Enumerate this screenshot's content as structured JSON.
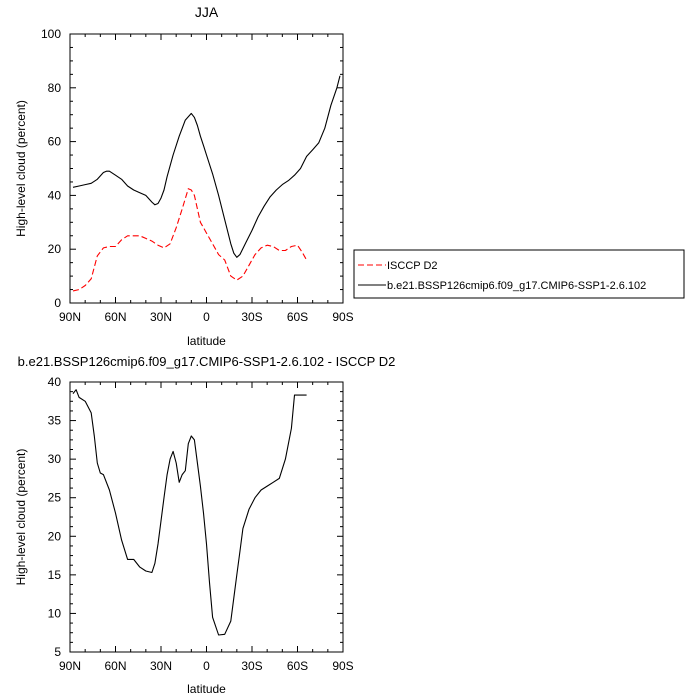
{
  "chart_data": [
    {
      "type": "line",
      "title": "JJA",
      "xlabel": "latitude",
      "ylabel": "High-level cloud (percent)",
      "x_ticks": [
        {
          "value": 90,
          "label": "90N"
        },
        {
          "value": 60,
          "label": "60N"
        },
        {
          "value": 30,
          "label": "30N"
        },
        {
          "value": 0,
          "label": "0"
        },
        {
          "value": -30,
          "label": "30S"
        },
        {
          "value": -60,
          "label": "60S"
        },
        {
          "value": -90,
          "label": "90S"
        }
      ],
      "xlim": [
        90,
        -90
      ],
      "ylim": [
        0,
        100
      ],
      "y_ticks": [
        0,
        20,
        40,
        60,
        80,
        100
      ],
      "grid": false,
      "legend_position": "right",
      "series": [
        {
          "name": "ISCCP D2",
          "color": "#ff0000",
          "dash": "dashed",
          "x": [
            88,
            84,
            80,
            76,
            72,
            68,
            64,
            60,
            56,
            52,
            48,
            44,
            40,
            36,
            32,
            28,
            24,
            20,
            16,
            12,
            10,
            8,
            6,
            4,
            2,
            0,
            -4,
            -8,
            -12,
            -16,
            -20,
            -24,
            -28,
            -32,
            -36,
            -40,
            -44,
            -48,
            -52,
            -56,
            -60,
            -63,
            -66
          ],
          "y": [
            4.5,
            5.0,
            6.5,
            9.0,
            17.5,
            20.5,
            21.0,
            21.0,
            23.5,
            25.0,
            25.0,
            25.0,
            24.0,
            23.0,
            21.5,
            20.5,
            22.0,
            28.0,
            35.0,
            42.5,
            42.0,
            40.0,
            35.0,
            30.0,
            28.0,
            26.0,
            22.0,
            18.0,
            16.0,
            10.0,
            8.5,
            10.0,
            14.0,
            18.0,
            20.5,
            21.5,
            21.0,
            19.5,
            19.5,
            21.0,
            21.5,
            19.0,
            16.0
          ]
        },
        {
          "name": "b.e21.BSSP126cmip6.f09_g17.CMIP6-SSP1-2.6.102",
          "color": "#000000",
          "dash": "solid",
          "x": [
            88,
            84,
            80,
            76,
            72,
            68,
            66,
            64,
            60,
            56,
            52,
            48,
            44,
            40,
            36,
            34,
            32,
            30,
            28,
            26,
            22,
            18,
            14,
            10,
            8,
            6,
            4,
            2,
            0,
            -4,
            -8,
            -12,
            -16,
            -18,
            -20,
            -22,
            -26,
            -30,
            -34,
            -38,
            -42,
            -46,
            -50,
            -54,
            -58,
            -62,
            -66,
            -70,
            -74,
            -78,
            -82,
            -86,
            -88
          ],
          "y": [
            43.0,
            43.5,
            44.0,
            44.5,
            46.0,
            48.5,
            49.0,
            49.0,
            47.5,
            46.0,
            43.5,
            42.0,
            41.0,
            40.0,
            37.5,
            36.5,
            37.0,
            39.0,
            42.0,
            47.0,
            55.0,
            62.0,
            68.0,
            70.5,
            69.0,
            66.0,
            62.0,
            58.5,
            55.0,
            48.0,
            40.0,
            31.0,
            22.0,
            18.5,
            17.0,
            18.0,
            22.5,
            27.0,
            32.0,
            36.0,
            39.5,
            42.0,
            44.0,
            45.5,
            47.5,
            50.0,
            54.5,
            57.0,
            59.5,
            65.0,
            73.5,
            80.0,
            84.5
          ]
        }
      ]
    },
    {
      "type": "line",
      "title": "b.e21.BSSP126cmip6.f09_g17.CMIP6-SSP1-2.6.102 - ISCCP D2",
      "xlabel": "latitude",
      "ylabel": "High-level cloud (percent)",
      "x_ticks": [
        {
          "value": 90,
          "label": "90N"
        },
        {
          "value": 60,
          "label": "60N"
        },
        {
          "value": 30,
          "label": "30N"
        },
        {
          "value": 0,
          "label": "0"
        },
        {
          "value": -30,
          "label": "30S"
        },
        {
          "value": -60,
          "label": "60S"
        },
        {
          "value": -90,
          "label": "90S"
        }
      ],
      "xlim": [
        90,
        -90
      ],
      "ylim": [
        5,
        40
      ],
      "y_ticks": [
        5,
        10,
        15,
        20,
        25,
        30,
        35,
        40
      ],
      "grid": false,
      "series": [
        {
          "color": "#000000",
          "dash": "solid",
          "x": [
            88,
            86,
            84,
            80,
            76,
            74,
            72,
            70,
            68,
            64,
            60,
            56,
            52,
            48,
            44,
            40,
            36,
            34,
            32,
            30,
            28,
            26,
            24,
            22,
            20,
            18,
            16,
            14,
            12,
            10,
            8,
            6,
            4,
            2,
            0,
            -2,
            -4,
            -8,
            -12,
            -16,
            -18,
            -20,
            -22,
            -24,
            -28,
            -32,
            -36,
            -40,
            -44,
            -48,
            -52,
            -56,
            -58,
            -60,
            -62,
            -64,
            -66
          ],
          "y": [
            38.5,
            39.0,
            38.0,
            37.5,
            36.0,
            33.0,
            29.5,
            28.2,
            28.0,
            26.0,
            23.0,
            19.5,
            17.0,
            17.0,
            16.0,
            15.5,
            15.3,
            16.5,
            19.0,
            22.0,
            25.0,
            28.0,
            30.0,
            31.0,
            29.5,
            27.0,
            28.0,
            28.5,
            32.0,
            33.0,
            32.5,
            29.5,
            26.5,
            23.0,
            19.0,
            14.0,
            9.5,
            7.2,
            7.3,
            9.0,
            12.0,
            15.0,
            18.0,
            21.0,
            23.5,
            25.0,
            26.0,
            26.5,
            27.0,
            27.5,
            30.0,
            34.0,
            38.3,
            38.3,
            38.3,
            38.3,
            38.3
          ]
        }
      ]
    }
  ]
}
